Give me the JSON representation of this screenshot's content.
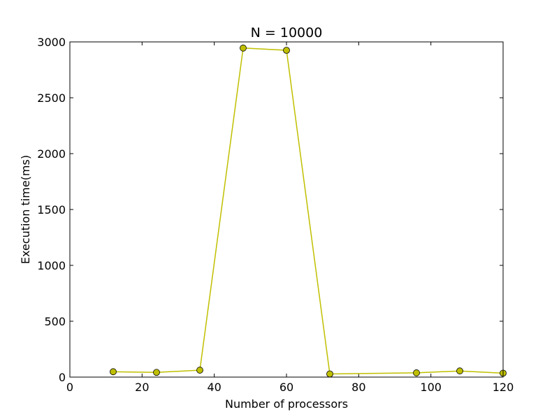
{
  "chart_data": {
    "type": "line",
    "title": "N = 10000",
    "xlabel": "Number of processors",
    "ylabel": "Execution time(ms)",
    "xlim": [
      0,
      120
    ],
    "ylim": [
      0,
      3000
    ],
    "xticks": [
      0,
      20,
      40,
      60,
      80,
      100,
      120
    ],
    "yticks": [
      0,
      500,
      1000,
      1500,
      2000,
      2500,
      3000
    ],
    "grid": false,
    "series": [
      {
        "color": "#bfbf00",
        "marker": "circle",
        "x": [
          12,
          24,
          36,
          48,
          60,
          72,
          96,
          108,
          120
        ],
        "y": [
          48,
          42,
          62,
          2945,
          2925,
          28,
          38,
          55,
          35
        ]
      }
    ]
  }
}
